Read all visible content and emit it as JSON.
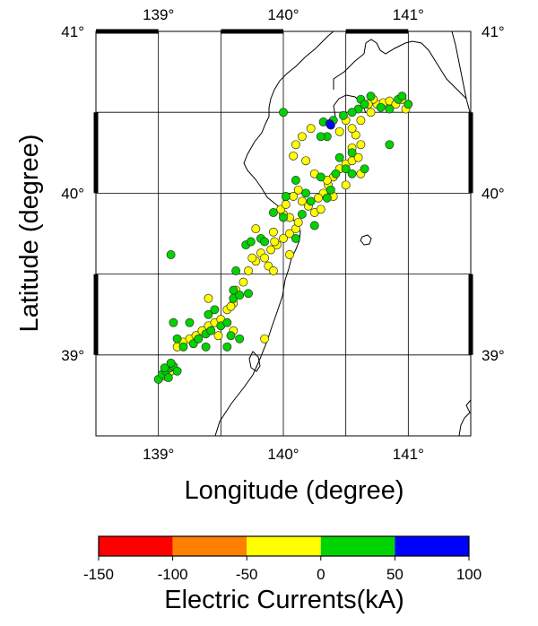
{
  "chart_data": {
    "type": "scatter",
    "title": "",
    "xlabel": "Longitude (degree)",
    "ylabel": "Latitude (degree)",
    "xlim": [
      138.5,
      141.5
    ],
    "ylim": [
      38.5,
      41.0
    ],
    "x_ticks": [
      "139°",
      "140°",
      "141°"
    ],
    "y_ticks": [
      "39°",
      "40°",
      "41°"
    ],
    "grid": true,
    "colorbar": {
      "title": "Electric Currents(kA)",
      "tick_labels": [
        "-150",
        "-100",
        "-50",
        "0",
        "50",
        "100"
      ],
      "bins": [
        {
          "from": -150,
          "to": -100,
          "color": "#ff0000"
        },
        {
          "from": -100,
          "to": -50,
          "color": "#ff8000"
        },
        {
          "from": -50,
          "to": 0,
          "color": "#ffff00"
        },
        {
          "from": 0,
          "to": 50,
          "color": "#00d400"
        },
        {
          "from": 50,
          "to": 100,
          "color": "#0000ff"
        }
      ]
    },
    "series": [
      {
        "category": "-50 to 0",
        "color": "#ffff00",
        "points": [
          [
            139.15,
            39.05
          ],
          [
            139.2,
            39.08
          ],
          [
            139.25,
            39.1
          ],
          [
            139.3,
            39.12
          ],
          [
            139.35,
            39.15
          ],
          [
            139.4,
            39.18
          ],
          [
            139.45,
            39.2
          ],
          [
            139.5,
            39.22
          ],
          [
            139.55,
            39.28
          ],
          [
            139.6,
            39.32
          ],
          [
            139.62,
            39.4
          ],
          [
            139.68,
            39.45
          ],
          [
            139.72,
            39.52
          ],
          [
            139.78,
            39.58
          ],
          [
            139.82,
            39.63
          ],
          [
            139.85,
            39.6
          ],
          [
            139.88,
            39.55
          ],
          [
            139.9,
            39.65
          ],
          [
            139.95,
            39.68
          ],
          [
            140.0,
            39.72
          ],
          [
            140.05,
            39.75
          ],
          [
            140.1,
            39.78
          ],
          [
            140.12,
            39.82
          ],
          [
            140.05,
            39.85
          ],
          [
            140.0,
            39.87
          ],
          [
            139.98,
            39.9
          ],
          [
            140.02,
            39.93
          ],
          [
            140.08,
            39.98
          ],
          [
            140.12,
            40.02
          ],
          [
            140.15,
            39.95
          ],
          [
            140.2,
            39.92
          ],
          [
            140.25,
            39.88
          ],
          [
            140.3,
            39.9
          ],
          [
            140.32,
            40.0
          ],
          [
            140.36,
            40.05
          ],
          [
            140.4,
            40.1
          ],
          [
            140.45,
            40.15
          ],
          [
            140.5,
            40.18
          ],
          [
            140.55,
            40.2
          ],
          [
            140.6,
            40.22
          ],
          [
            140.62,
            40.3
          ],
          [
            140.58,
            40.36
          ],
          [
            140.55,
            40.4
          ],
          [
            140.62,
            40.45
          ],
          [
            140.7,
            40.5
          ],
          [
            140.75,
            40.55
          ],
          [
            140.8,
            40.56
          ],
          [
            140.85,
            40.57
          ],
          [
            140.9,
            40.55
          ],
          [
            140.95,
            40.58
          ],
          [
            140.98,
            40.52
          ],
          [
            140.72,
            40.58
          ],
          [
            140.68,
            40.55
          ],
          [
            140.5,
            40.45
          ],
          [
            140.45,
            40.38
          ],
          [
            140.22,
            40.4
          ],
          [
            140.15,
            40.35
          ],
          [
            140.1,
            40.3
          ],
          [
            140.08,
            40.23
          ],
          [
            140.18,
            40.2
          ],
          [
            140.25,
            40.12
          ],
          [
            140.35,
            40.08
          ],
          [
            140.28,
            39.97
          ],
          [
            139.92,
            39.76
          ],
          [
            139.78,
            39.78
          ],
          [
            139.92,
            39.52
          ],
          [
            139.75,
            39.6
          ],
          [
            139.58,
            39.3
          ],
          [
            139.4,
            39.35
          ],
          [
            139.48,
            39.12
          ],
          [
            139.6,
            39.15
          ],
          [
            139.1,
            38.9
          ],
          [
            139.05,
            38.87
          ],
          [
            140.55,
            40.28
          ],
          [
            140.62,
            40.12
          ],
          [
            140.4,
            39.98
          ],
          [
            140.05,
            39.62
          ],
          [
            139.93,
            39.7
          ],
          [
            139.85,
            39.1
          ],
          [
            140.5,
            40.05
          ]
        ]
      },
      {
        "category": "0 to 50",
        "color": "#00d400",
        "points": [
          [
            139.0,
            38.85
          ],
          [
            139.03,
            38.88
          ],
          [
            139.06,
            38.9
          ],
          [
            139.09,
            38.92
          ],
          [
            139.12,
            38.93
          ],
          [
            139.15,
            38.9
          ],
          [
            139.05,
            38.92
          ],
          [
            139.08,
            38.86
          ],
          [
            139.1,
            38.95
          ],
          [
            139.2,
            39.05
          ],
          [
            139.28,
            39.07
          ],
          [
            139.32,
            39.1
          ],
          [
            139.38,
            39.13
          ],
          [
            139.42,
            39.15
          ],
          [
            139.5,
            39.18
          ],
          [
            139.55,
            39.2
          ],
          [
            139.6,
            39.35
          ],
          [
            139.65,
            39.37
          ],
          [
            139.7,
            39.68
          ],
          [
            139.74,
            39.7
          ],
          [
            139.82,
            39.72
          ],
          [
            139.85,
            39.7
          ],
          [
            140.0,
            39.85
          ],
          [
            140.02,
            39.98
          ],
          [
            140.1,
            40.08
          ],
          [
            140.18,
            40.0
          ],
          [
            140.3,
            40.1
          ],
          [
            140.38,
            40.02
          ],
          [
            140.42,
            40.12
          ],
          [
            140.5,
            40.15
          ],
          [
            140.55,
            40.25
          ],
          [
            140.45,
            40.22
          ],
          [
            140.35,
            40.35
          ],
          [
            140.6,
            40.52
          ],
          [
            140.62,
            40.58
          ],
          [
            140.65,
            40.55
          ],
          [
            140.7,
            40.6
          ],
          [
            140.78,
            40.53
          ],
          [
            140.85,
            40.52
          ],
          [
            140.92,
            40.58
          ],
          [
            140.95,
            40.6
          ],
          [
            141.0,
            40.55
          ],
          [
            140.55,
            40.5
          ],
          [
            140.48,
            40.48
          ],
          [
            140.32,
            40.44
          ],
          [
            140.4,
            40.45
          ],
          [
            140.3,
            40.35
          ],
          [
            140.0,
            40.5
          ],
          [
            139.1,
            39.62
          ],
          [
            139.12,
            39.2
          ],
          [
            139.15,
            39.1
          ],
          [
            139.62,
            39.52
          ],
          [
            139.6,
            39.4
          ],
          [
            139.4,
            39.25
          ],
          [
            139.38,
            39.05
          ],
          [
            139.65,
            39.1
          ],
          [
            139.58,
            39.12
          ],
          [
            139.72,
            39.38
          ],
          [
            139.92,
            39.88
          ],
          [
            140.15,
            39.87
          ],
          [
            140.25,
            39.8
          ],
          [
            140.1,
            39.72
          ],
          [
            140.55,
            40.12
          ],
          [
            140.85,
            40.3
          ],
          [
            140.65,
            40.15
          ],
          [
            140.22,
            39.95
          ],
          [
            140.35,
            39.97
          ],
          [
            139.55,
            39.05
          ],
          [
            139.45,
            39.28
          ],
          [
            139.25,
            39.2
          ]
        ]
      },
      {
        "category": "50 to 100",
        "color": "#0000ff",
        "points": [
          [
            140.37,
            40.43
          ],
          [
            140.38,
            40.42
          ]
        ]
      }
    ]
  }
}
